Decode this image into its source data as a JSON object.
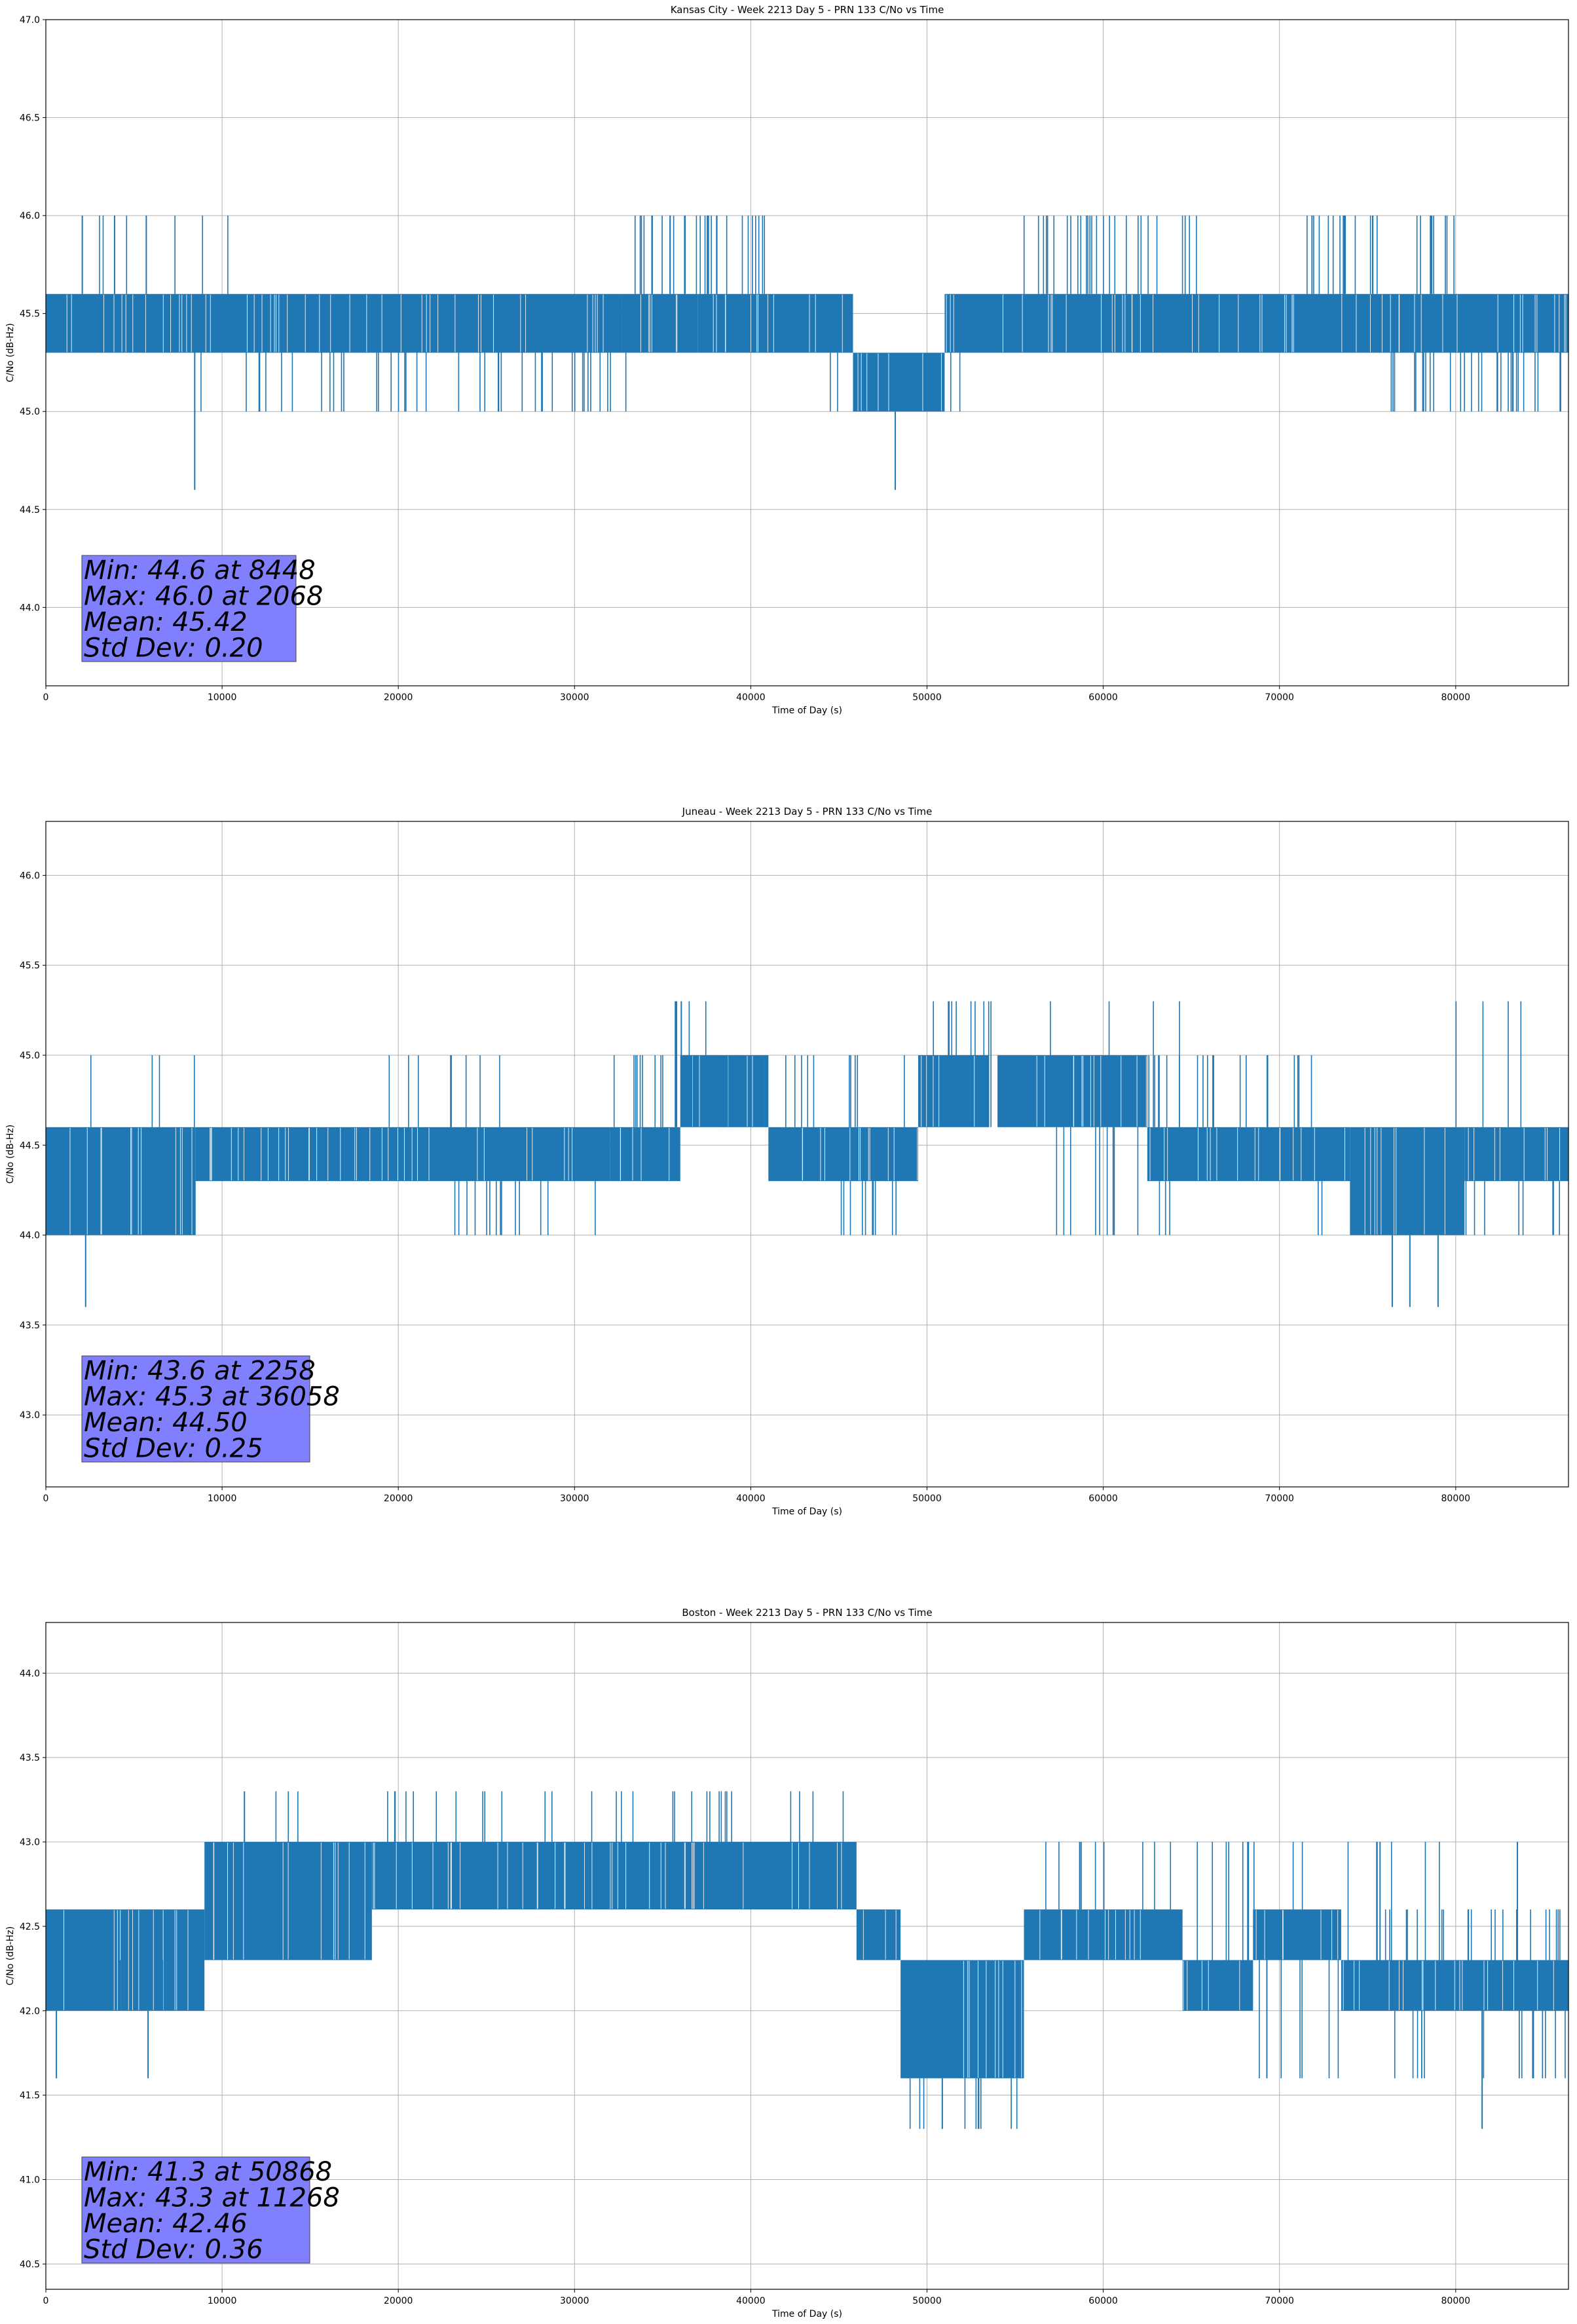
{
  "chart_data": [
    {
      "type": "line",
      "title": "Kansas City - Week 2213 Day 5 - PRN 133 C/No vs Time",
      "xlabel": "Time of Day (s)",
      "ylabel": "C/No (dB-Hz)",
      "xlim": [
        0,
        86400
      ],
      "ylim": [
        43.6,
        47.0
      ],
      "xticks": [
        "0",
        "10000",
        "20000",
        "30000",
        "40000",
        "50000",
        "60000",
        "70000",
        "80000"
      ],
      "yticks": [
        "44.0",
        "44.5",
        "45.0",
        "45.5",
        "46.0",
        "46.5",
        "47.0"
      ],
      "grid": true,
      "color": "#1f77b4",
      "box_color": "#8080ff",
      "stats": [
        "Min: 44.6 at 8448",
        "Max: 46.0 at 2068",
        "Mean: 45.42",
        "Std Dev: 0.20"
      ],
      "series": [
        {
          "segments": [
            {
              "x": [
                0,
                32700
              ],
              "low": 45.3,
              "high": 45.6
            },
            {
              "x": [
                32700,
                37000
              ],
              "low": 45.3,
              "high": 45.6
            },
            {
              "x": [
                37000,
                45800
              ],
              "low": 45.3,
              "high": 45.6
            },
            {
              "x": [
                45800,
                51000
              ],
              "low": 45.0,
              "high": 45.3
            },
            {
              "x": [
                51000,
                86400
              ],
              "low": 45.3,
              "high": 45.6
            }
          ],
          "spike_ranges": [
            {
              "x": [
                2000,
                14000
              ],
              "levels": [
                45.0,
                46.0
              ],
              "count": 8
            },
            {
              "x": [
                33000,
                41000
              ],
              "levels": [
                46.0
              ],
              "count": 30
            },
            {
              "x": [
                55000,
                66000
              ],
              "levels": [
                46.0
              ],
              "count": 28
            },
            {
              "x": [
                71000,
                80000
              ],
              "levels": [
                46.0
              ],
              "count": 26
            },
            {
              "x": [
                10000,
                33000
              ],
              "levels": [
                45.0
              ],
              "count": 40
            },
            {
              "x": [
                44000,
                52000
              ],
              "levels": [
                45.0
              ],
              "count": 12
            },
            {
              "x": [
                76000,
                86400
              ],
              "levels": [
                45.0
              ],
              "count": 30
            }
          ],
          "outliers": [
            {
              "x": 8448,
              "y": 44.6
            },
            {
              "x": 48200,
              "y": 44.6
            },
            {
              "x": 2068,
              "y": 46.0
            },
            {
              "x": 3900,
              "y": 46.0
            },
            {
              "x": 5700,
              "y": 46.0
            }
          ]
        }
      ]
    },
    {
      "type": "line",
      "title": "Juneau - Week 2213 Day 5 - PRN 133 C/No vs Time",
      "xlabel": "Time of Day (s)",
      "ylabel": "C/No (dB-Hz)",
      "xlim": [
        0,
        86400
      ],
      "ylim": [
        42.6,
        46.3
      ],
      "xticks": [
        "0",
        "10000",
        "20000",
        "30000",
        "40000",
        "50000",
        "60000",
        "70000",
        "80000"
      ],
      "yticks": [
        "43.0",
        "43.5",
        "44.0",
        "44.5",
        "45.0",
        "45.5",
        "46.0"
      ],
      "grid": true,
      "color": "#1f77b4",
      "box_color": "#8080ff",
      "stats": [
        "Min: 43.6 at 2258",
        "Max: 45.3 at 36058",
        "Mean: 44.50",
        "Std Dev: 0.25"
      ],
      "series": [
        {
          "segments": [
            {
              "x": [
                0,
                8500
              ],
              "low": 44.0,
              "high": 44.6
            },
            {
              "x": [
                8500,
                32000
              ],
              "low": 44.3,
              "high": 44.6
            },
            {
              "x": [
                32000,
                36000
              ],
              "low": 44.3,
              "high": 44.6
            },
            {
              "x": [
                36000,
                41000
              ],
              "low": 44.6,
              "high": 45.0
            },
            {
              "x": [
                41000,
                49500
              ],
              "low": 44.3,
              "high": 44.6
            },
            {
              "x": [
                49500,
                53500
              ],
              "low": 44.6,
              "high": 45.0
            },
            {
              "x": [
                54000,
                62500
              ],
              "low": 44.6,
              "high": 45.0
            },
            {
              "x": [
                62500,
                74000
              ],
              "low": 44.3,
              "high": 44.6
            },
            {
              "x": [
                74000,
                80500
              ],
              "low": 44.0,
              "high": 44.6
            },
            {
              "x": [
                80500,
                86400
              ],
              "low": 44.3,
              "high": 44.6
            }
          ],
          "spike_ranges": [
            {
              "x": [
                2000,
                10000
              ],
              "levels": [
                45.0
              ],
              "count": 4
            },
            {
              "x": [
                19000,
                27000
              ],
              "levels": [
                45.0
              ],
              "count": 8
            },
            {
              "x": [
                32000,
                49000
              ],
              "levels": [
                45.0
              ],
              "count": 30
            },
            {
              "x": [
                35500,
                37500
              ],
              "levels": [
                45.3
              ],
              "count": 5
            },
            {
              "x": [
                50000,
                54000
              ],
              "levels": [
                45.3
              ],
              "count": 10
            },
            {
              "x": [
                57000,
                66000
              ],
              "levels": [
                45.3
              ],
              "count": 4
            },
            {
              "x": [
                62000,
                72000
              ],
              "levels": [
                45.0
              ],
              "count": 20
            },
            {
              "x": [
                80000,
                84000
              ],
              "levels": [
                45.3
              ],
              "count": 4
            },
            {
              "x": [
                23000,
                31500
              ],
              "levels": [
                44.0
              ],
              "count": 14
            },
            {
              "x": [
                45000,
                49000
              ],
              "levels": [
                44.0
              ],
              "count": 10
            },
            {
              "x": [
                57000,
                64000
              ],
              "levels": [
                44.0
              ],
              "count": 12
            },
            {
              "x": [
                72000,
                86400
              ],
              "levels": [
                44.0
              ],
              "count": 20
            }
          ],
          "outliers": [
            {
              "x": 2258,
              "y": 43.6
            },
            {
              "x": 76400,
              "y": 43.6
            },
            {
              "x": 77400,
              "y": 43.6
            },
            {
              "x": 79000,
              "y": 43.6
            },
            {
              "x": 36058,
              "y": 45.3
            }
          ]
        }
      ]
    },
    {
      "type": "line",
      "title": "Boston - Week 2213 Day 5 - PRN 133 C/No vs Time",
      "xlabel": "Time of Day (s)",
      "ylabel": "C/No (dB-Hz)",
      "xlim": [
        0,
        86400
      ],
      "ylim": [
        40.35,
        44.3
      ],
      "xticks": [
        "0",
        "10000",
        "20000",
        "30000",
        "40000",
        "50000",
        "60000",
        "70000",
        "80000"
      ],
      "yticks": [
        "40.5",
        "41.0",
        "41.5",
        "42.0",
        "42.5",
        "43.0",
        "43.5",
        "44.0"
      ],
      "grid": true,
      "color": "#1f77b4",
      "box_color": "#8080ff",
      "stats": [
        "Min: 41.3 at 50868",
        "Max: 43.3 at 11268",
        "Mean: 42.46",
        "Std Dev: 0.36"
      ],
      "series": [
        {
          "segments": [
            {
              "x": [
                0,
                9000
              ],
              "low": 42.0,
              "high": 42.6
            },
            {
              "x": [
                9000,
                18500
              ],
              "low": 42.3,
              "high": 43.0
            },
            {
              "x": [
                18500,
                46000
              ],
              "low": 42.6,
              "high": 43.0
            },
            {
              "x": [
                46000,
                48500
              ],
              "low": 42.3,
              "high": 42.6
            },
            {
              "x": [
                48500,
                55500
              ],
              "low": 41.6,
              "high": 42.3
            },
            {
              "x": [
                55500,
                64500
              ],
              "low": 42.3,
              "high": 42.6
            },
            {
              "x": [
                64500,
                68500
              ],
              "low": 42.0,
              "high": 42.3
            },
            {
              "x": [
                68500,
                73500
              ],
              "low": 42.3,
              "high": 42.6
            },
            {
              "x": [
                73500,
                86400
              ],
              "low": 42.0,
              "high": 42.3
            }
          ],
          "spike_ranges": [
            {
              "x": [
                9500,
                16000
              ],
              "levels": [
                43.3
              ],
              "count": 3
            },
            {
              "x": [
                19000,
                46000
              ],
              "levels": [
                43.3
              ],
              "count": 30
            },
            {
              "x": [
                55000,
                80000
              ],
              "levels": [
                43.0
              ],
              "count": 28
            },
            {
              "x": [
                76000,
                86400
              ],
              "levels": [
                42.6
              ],
              "count": 20
            },
            {
              "x": [
                48500,
                56000
              ],
              "levels": [
                41.3
              ],
              "count": 10
            },
            {
              "x": [
                68000,
                86400
              ],
              "levels": [
                41.6
              ],
              "count": 26
            },
            {
              "x": [
                0,
                9000
              ],
              "levels": [
                42.3
              ],
              "count": 10
            }
          ],
          "outliers": [
            {
              "x": 600,
              "y": 41.6
            },
            {
              "x": 5800,
              "y": 41.6
            },
            {
              "x": 50868,
              "y": 41.3
            },
            {
              "x": 81500,
              "y": 41.3
            },
            {
              "x": 11268,
              "y": 43.3
            },
            {
              "x": 83500,
              "y": 43.0
            }
          ]
        }
      ]
    }
  ]
}
